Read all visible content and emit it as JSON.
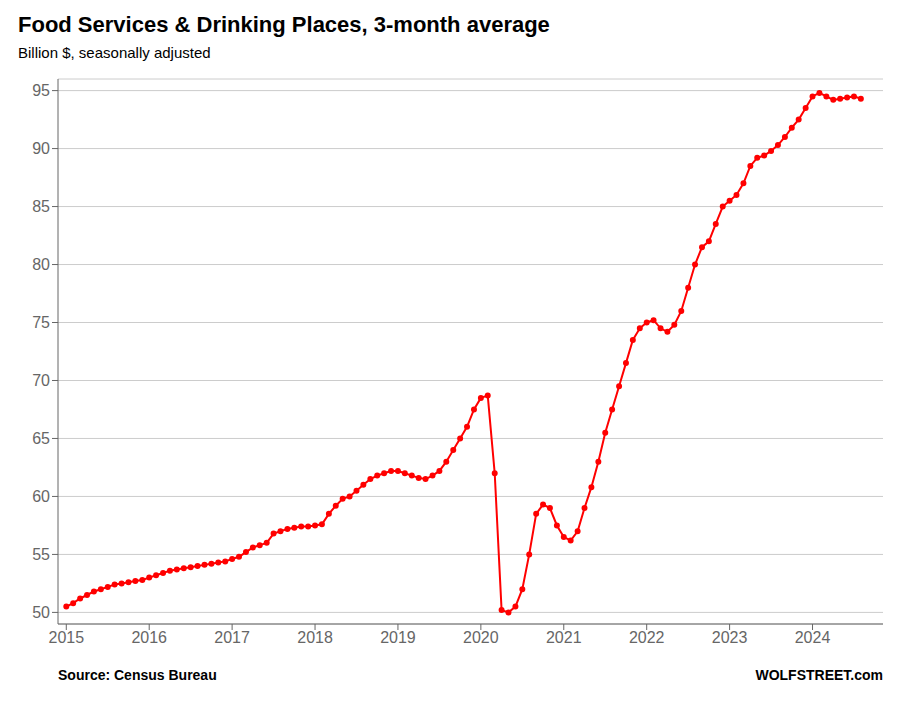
{
  "chart_data": {
    "type": "line",
    "title": "Food Services & Drinking Places, 3-month average",
    "subtitle": "Billion $, seasonally adjusted",
    "annotations": [
      "Source: Census Bureau",
      "WOLFSTREET.com"
    ],
    "x": [
      2015.0,
      2015.083,
      2015.167,
      2015.25,
      2015.333,
      2015.417,
      2015.5,
      2015.583,
      2015.667,
      2015.75,
      2015.833,
      2015.917,
      2016.0,
      2016.083,
      2016.167,
      2016.25,
      2016.333,
      2016.417,
      2016.5,
      2016.583,
      2016.667,
      2016.75,
      2016.833,
      2016.917,
      2017.0,
      2017.083,
      2017.167,
      2017.25,
      2017.333,
      2017.417,
      2017.5,
      2017.583,
      2017.667,
      2017.75,
      2017.833,
      2017.917,
      2018.0,
      2018.083,
      2018.167,
      2018.25,
      2018.333,
      2018.417,
      2018.5,
      2018.583,
      2018.667,
      2018.75,
      2018.833,
      2018.917,
      2019.0,
      2019.083,
      2019.167,
      2019.25,
      2019.333,
      2019.417,
      2019.5,
      2019.583,
      2019.667,
      2019.75,
      2019.833,
      2019.917,
      2020.0,
      2020.083,
      2020.167,
      2020.25,
      2020.333,
      2020.417,
      2020.5,
      2020.583,
      2020.667,
      2020.75,
      2020.833,
      2020.917,
      2021.0,
      2021.083,
      2021.167,
      2021.25,
      2021.333,
      2021.417,
      2021.5,
      2021.583,
      2021.667,
      2021.75,
      2021.833,
      2021.917,
      2022.0,
      2022.083,
      2022.167,
      2022.25,
      2022.333,
      2022.417,
      2022.5,
      2022.583,
      2022.667,
      2022.75,
      2022.833,
      2022.917,
      2023.0,
      2023.083,
      2023.167,
      2023.25,
      2023.333,
      2023.417,
      2023.5,
      2023.583,
      2023.667,
      2023.75,
      2023.833,
      2023.917,
      2024.0,
      2024.083,
      2024.167,
      2024.25,
      2024.333,
      2024.417,
      2024.5,
      2024.583
    ],
    "values": [
      50.5,
      50.8,
      51.2,
      51.5,
      51.8,
      52.0,
      52.2,
      52.4,
      52.5,
      52.6,
      52.7,
      52.8,
      53.0,
      53.2,
      53.4,
      53.6,
      53.7,
      53.8,
      53.9,
      54.0,
      54.1,
      54.2,
      54.3,
      54.4,
      54.6,
      54.8,
      55.2,
      55.6,
      55.8,
      56.0,
      56.8,
      57.0,
      57.2,
      57.3,
      57.4,
      57.4,
      57.5,
      57.6,
      58.5,
      59.2,
      59.8,
      60.0,
      60.5,
      61.0,
      61.5,
      61.8,
      62.0,
      62.2,
      62.2,
      62.0,
      61.8,
      61.6,
      61.5,
      61.8,
      62.2,
      63.0,
      64.0,
      65.0,
      66.0,
      67.5,
      68.5,
      68.7,
      62.0,
      50.2,
      50.0,
      50.5,
      52.0,
      55.0,
      58.5,
      59.3,
      59.0,
      57.5,
      56.5,
      56.2,
      57.0,
      59.0,
      60.8,
      63.0,
      65.5,
      67.5,
      69.5,
      71.5,
      73.5,
      74.5,
      75.0,
      75.2,
      74.5,
      74.2,
      74.8,
      76.0,
      78.0,
      80.0,
      81.5,
      82.0,
      83.5,
      85.0,
      85.5,
      86.0,
      87.0,
      88.5,
      89.2,
      89.4,
      89.8,
      90.3,
      91.0,
      91.8,
      92.5,
      93.5,
      94.5,
      94.8,
      94.5,
      94.2,
      94.3,
      94.4,
      94.5,
      94.3
    ],
    "color": "#FF0000",
    "marker": "circle",
    "xlim": [
      2014.9,
      2024.85
    ],
    "xticks": [
      2015,
      2016,
      2017,
      2018,
      2019,
      2020,
      2021,
      2022,
      2023,
      2024
    ],
    "ylim": [
      49,
      96
    ],
    "yticks": [
      50,
      55,
      60,
      65,
      70,
      75,
      80,
      85,
      90,
      95
    ],
    "grid": true
  }
}
